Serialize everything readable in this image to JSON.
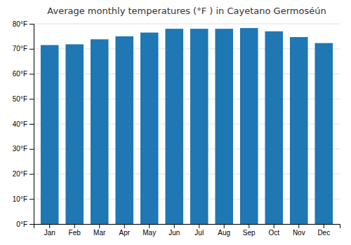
{
  "chart_data": {
    "type": "bar",
    "title": "Average monthly temperatures (°F ) in Cayetano Germoséún",
    "categories": [
      "Jan",
      "Feb",
      "Mar",
      "Apr",
      "May",
      "Jun",
      "Jul",
      "Aug",
      "Sep",
      "Oct",
      "Nov",
      "Dec"
    ],
    "values": [
      71.5,
      71.8,
      73.8,
      75.0,
      76.5,
      78.0,
      78.0,
      78.0,
      78.3,
      77.0,
      74.7,
      72.3
    ],
    "ylim": [
      0,
      80
    ],
    "yticks": [
      {
        "value": 0,
        "label": "0°F"
      },
      {
        "value": 10,
        "label": "10°F"
      },
      {
        "value": 20,
        "label": "20°F"
      },
      {
        "value": 30,
        "label": "30°F"
      },
      {
        "value": 40,
        "label": "40°F"
      },
      {
        "value": 50,
        "label": "50°F"
      },
      {
        "value": 60,
        "label": "60°F"
      },
      {
        "value": 70,
        "label": "70°F"
      },
      {
        "value": 80,
        "label": "80°F"
      }
    ],
    "grid": true
  }
}
